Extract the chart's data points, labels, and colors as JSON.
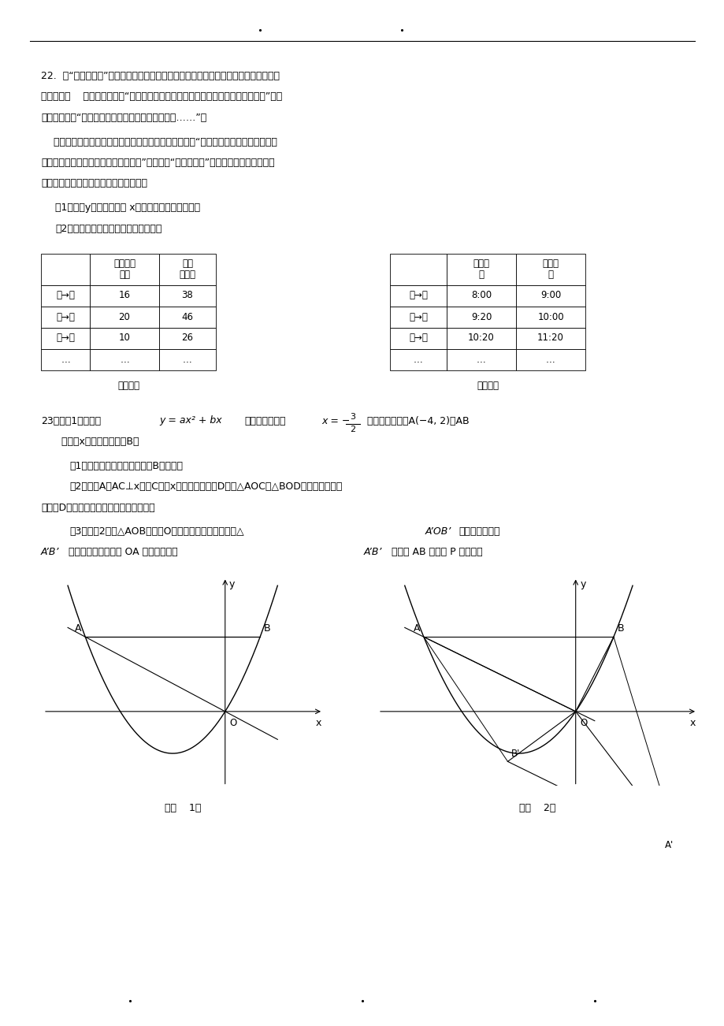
{
  "bg_color": "#ffffff",
  "page_width": 9.2,
  "page_height": 13.02,
  "q22_lines": [
    "22.  在“十一黄金周”期间，小明和他的父每坐游船从甲地到乙地观光，在售票大厅看到",
    "表（一），    爸爸对小明说：“我来考考你，你能知道里程与票价之间有何关系吗？”小明",
    "点了点头说：“里程与票价是一次函数关系，具体是……”。",
    "    在游船上，他注意到表（二），思考一下，对爸爸说：“若游船在静水中的速度不变，",
    "那么我还能算出它的速度和水流速度。”爸爸说：“你真贚明！”亲爱的同学，你知道小明",
    "是如何求出的吗？请你和小明一起求出："
  ],
  "q22_sub1": "（1）票价y（元）与里程 x（千米）的函数关系式；",
  "q22_sub2": "（2）游船在静水中的速度和水流速度。",
  "table1_rows": [
    [
      "",
      "里程（千\n米）",
      "票价\n（元）"
    ],
    [
      "甲→乙",
      "16",
      "38"
    ],
    [
      "甲→丙",
      "20",
      "46"
    ],
    [
      "甲→丁",
      "10",
      "26"
    ],
    [
      "…",
      "…",
      "…"
    ]
  ],
  "table1_caption": "表（一）",
  "table2_rows": [
    [
      "",
      "出发时\n间",
      "到达时\n间"
    ],
    [
      "甲→乙",
      "8:00",
      "9:00"
    ],
    [
      "乙→甲",
      "9:20",
      "10:00"
    ],
    [
      "甲→乙",
      "10:20",
      "11:20"
    ],
    [
      "…",
      "…",
      "…"
    ]
  ],
  "table2_caption": "表（二）",
  "q23_line1_pre": "23．如图1，抛物线",
  "q23_line1_math": "y = ax² + bx",
  "q23_line1_mid": "的对称轴为直线",
  "q23_line1_xeq": "x = −",
  "q23_line1_num": "3",
  "q23_line1_den": "2",
  "q23_line1_post": "且抛物线经过点A(−4, 2)，AB",
  "q23_line2": "  平行于x轴交抛物线于点B。",
  "q23_sub1": "（1）求该抛物线的解析式和点B的坐标；",
  "q23_sub2a": "（2）过点A作AC⊥x轴于C，在x轴上是否存在点D，使△AOC与△BOD相似？若存在，",
  "q23_sub2b": "求出点D的坐标；若不存在，请说明理由；",
  "q23_sub3a": "（3）如图2，将△AOB绕着点O按逆时针方向旋转后到达△",
  "q23_sub3a2": "A’OB’",
  "q23_sub3a3": "的位置，当线段",
  "q23_sub3b1": "A’B’",
  "q23_sub3b2": "的中点正好落在直线 OA 上时，求直线",
  "q23_sub3b3": "A’B’",
  "q23_sub3b4": "与直线 AB 的交点 P 的坐标。",
  "fig1_caption": "（图    1）",
  "fig2_caption": "（图    2）"
}
